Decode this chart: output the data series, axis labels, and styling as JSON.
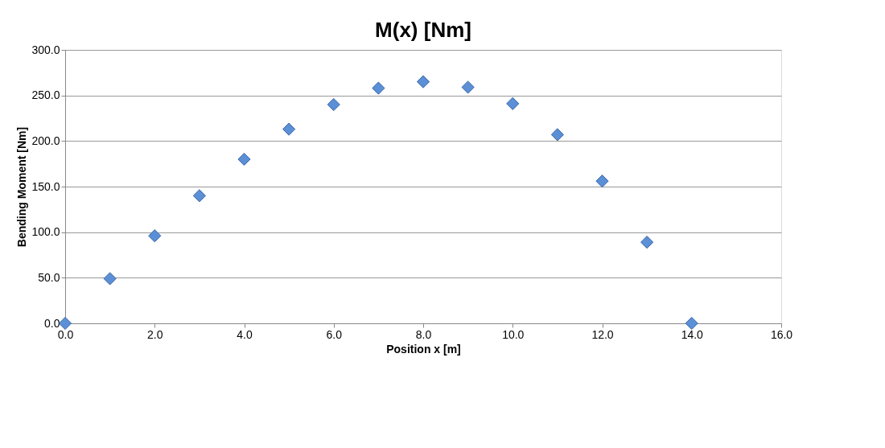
{
  "chart_data": {
    "type": "scatter",
    "title": "M(x) [Nm]",
    "xlabel": "Position x [m]",
    "ylabel": "Bending Moment [Nm]",
    "x": [
      0,
      1,
      2,
      3,
      4,
      5,
      6,
      7,
      8,
      9,
      10,
      11,
      12,
      13,
      14
    ],
    "series": [
      {
        "color": "#5b8fd6",
        "values": [
          0,
          49,
          96,
          140,
          180,
          213,
          240,
          258,
          265,
          259,
          241,
          207,
          156,
          89,
          0
        ]
      }
    ],
    "xlim": [
      0,
      16
    ],
    "xticks": [
      {
        "value": 0,
        "label": "0.0"
      },
      {
        "value": 2,
        "label": "2.0"
      },
      {
        "value": 4,
        "label": "4.0"
      },
      {
        "value": 6,
        "label": "6.0"
      },
      {
        "value": 8,
        "label": "8.0"
      },
      {
        "value": 10,
        "label": "10.0"
      },
      {
        "value": 12,
        "label": "12.0"
      },
      {
        "value": 14,
        "label": "14.0"
      },
      {
        "value": 16,
        "label": "16.0"
      }
    ],
    "ylim": [
      0,
      300
    ],
    "yticks": [
      {
        "value": 0,
        "label": "0.0"
      },
      {
        "value": 50,
        "label": "50.0"
      },
      {
        "value": 100,
        "label": "100.0"
      },
      {
        "value": 150,
        "label": "150.0"
      },
      {
        "value": 200,
        "label": "200.0"
      },
      {
        "value": 250,
        "label": "250.0"
      },
      {
        "value": 300,
        "label": "300.0"
      }
    ],
    "grid": "y",
    "marker": "diamond"
  }
}
